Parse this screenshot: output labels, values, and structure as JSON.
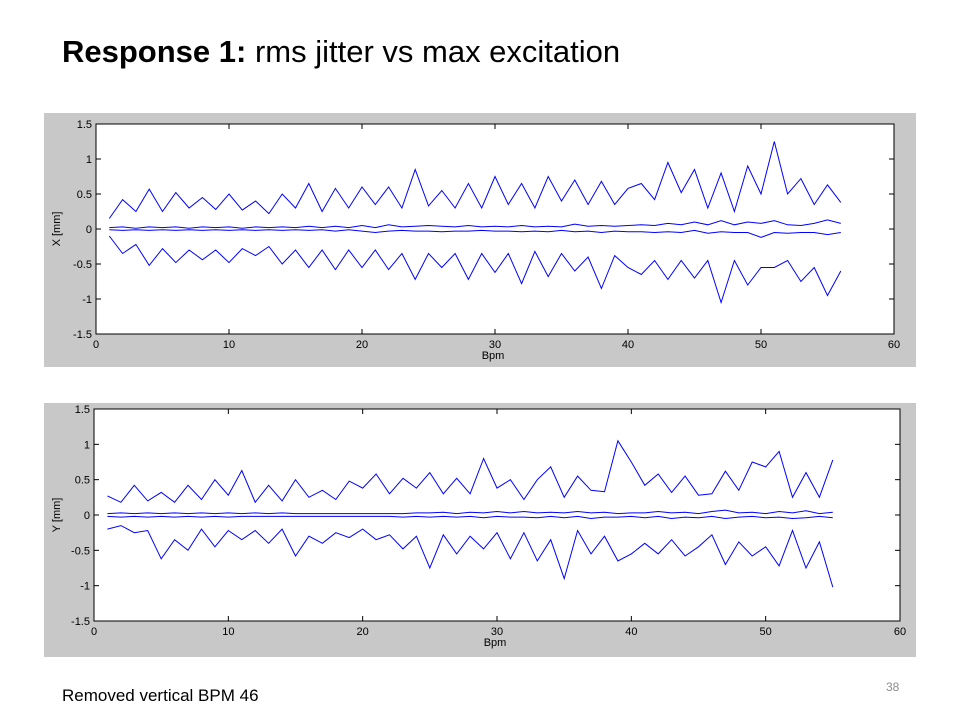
{
  "slide": {
    "title_bold": "Response 1:",
    "title_rest": " rms jitter vs max excitation",
    "note": "Removed vertical BPM 46",
    "page_number": "38"
  },
  "chart_data": [
    {
      "type": "line",
      "xlabel": "Bpm",
      "ylabel": "X [mm]",
      "xlim": [
        0,
        60
      ],
      "ylim": [
        -1.5,
        1.5
      ],
      "xticks": [
        "0",
        "10",
        "20",
        "30",
        "40",
        "50",
        "60"
      ],
      "yticks": [
        "1.5",
        "1",
        "0.5",
        "0",
        "-0.5",
        "-1",
        "-1.5"
      ],
      "grid": false,
      "line_color": "#0000ff",
      "x": [
        1,
        2,
        3,
        4,
        5,
        6,
        7,
        8,
        9,
        10,
        11,
        12,
        13,
        14,
        15,
        16,
        17,
        18,
        19,
        20,
        21,
        22,
        23,
        24,
        25,
        26,
        27,
        28,
        29,
        30,
        31,
        32,
        33,
        34,
        35,
        36,
        37,
        38,
        39,
        40,
        41,
        42,
        43,
        44,
        45,
        46,
        47,
        48,
        49,
        50,
        51,
        52,
        53,
        54,
        55,
        56
      ],
      "series": [
        {
          "values": [
            0.15,
            0.42,
            0.25,
            0.57,
            0.25,
            0.52,
            0.3,
            0.45,
            0.28,
            0.5,
            0.27,
            0.4,
            0.22,
            0.5,
            0.3,
            0.65,
            0.25,
            0.58,
            0.3,
            0.6,
            0.35,
            0.6,
            0.3,
            0.85,
            0.33,
            0.55,
            0.3,
            0.65,
            0.3,
            0.75,
            0.35,
            0.65,
            0.3,
            0.75,
            0.4,
            0.7,
            0.35,
            0.68,
            0.35,
            0.58,
            0.65,
            0.42,
            0.95,
            0.52,
            0.85,
            0.3,
            0.8,
            0.25,
            0.9,
            0.5,
            1.25,
            0.5,
            0.72,
            0.35,
            0.63,
            0.38
          ]
        },
        {
          "values": [
            -0.1,
            -0.35,
            -0.22,
            -0.52,
            -0.28,
            -0.48,
            -0.3,
            -0.44,
            -0.3,
            -0.48,
            -0.28,
            -0.38,
            -0.25,
            -0.5,
            -0.3,
            -0.55,
            -0.3,
            -0.58,
            -0.3,
            -0.55,
            -0.3,
            -0.58,
            -0.35,
            -0.72,
            -0.35,
            -0.55,
            -0.35,
            -0.72,
            -0.35,
            -0.62,
            -0.35,
            -0.78,
            -0.32,
            -0.68,
            -0.35,
            -0.6,
            -0.4,
            -0.85,
            -0.38,
            -0.55,
            -0.65,
            -0.45,
            -0.72,
            -0.45,
            -0.7,
            -0.45,
            -1.05,
            -0.45,
            -0.8,
            -0.55,
            -0.55,
            -0.45,
            -0.75,
            -0.55,
            -0.95,
            -0.6
          ]
        },
        {
          "values": [
            0.02,
            0.03,
            0.01,
            0.03,
            0.02,
            0.03,
            0.01,
            0.03,
            0.02,
            0.03,
            0.01,
            0.03,
            0.02,
            0.03,
            0.02,
            0.04,
            0.02,
            0.04,
            0.02,
            0.05,
            0.02,
            0.06,
            0.03,
            0.04,
            0.05,
            0.04,
            0.03,
            0.05,
            0.03,
            0.04,
            0.03,
            0.05,
            0.03,
            0.04,
            0.03,
            0.07,
            0.04,
            0.05,
            0.04,
            0.05,
            0.06,
            0.05,
            0.08,
            0.06,
            0.1,
            0.06,
            0.12,
            0.06,
            0.1,
            0.08,
            0.12,
            0.06,
            0.05,
            0.08,
            0.13,
            0.08
          ]
        },
        {
          "values": [
            -0.01,
            -0.02,
            -0.01,
            -0.02,
            -0.01,
            -0.02,
            -0.01,
            -0.02,
            -0.01,
            -0.02,
            -0.01,
            -0.02,
            -0.01,
            -0.02,
            -0.01,
            -0.02,
            -0.01,
            -0.03,
            -0.01,
            -0.03,
            -0.05,
            -0.03,
            -0.02,
            -0.03,
            -0.03,
            -0.04,
            -0.03,
            -0.03,
            -0.02,
            -0.03,
            -0.03,
            -0.04,
            -0.03,
            -0.04,
            -0.02,
            -0.04,
            -0.03,
            -0.05,
            -0.03,
            -0.04,
            -0.04,
            -0.05,
            -0.04,
            -0.05,
            -0.02,
            -0.06,
            -0.04,
            -0.05,
            -0.05,
            -0.12,
            -0.05,
            -0.06,
            -0.05,
            -0.05,
            -0.08,
            -0.05
          ]
        }
      ]
    },
    {
      "type": "line",
      "xlabel": "Bpm",
      "ylabel": "Y [mm]",
      "xlim": [
        0,
        60
      ],
      "ylim": [
        -1.5,
        1.5
      ],
      "xticks": [
        "0",
        "10",
        "20",
        "30",
        "40",
        "50",
        "60"
      ],
      "yticks": [
        "1.5",
        "1",
        "0.5",
        "0",
        "-0.5",
        "-1",
        "-1.5"
      ],
      "grid": false,
      "line_color": "#0000ff",
      "x": [
        1,
        2,
        3,
        4,
        5,
        6,
        7,
        8,
        9,
        10,
        11,
        12,
        13,
        14,
        15,
        16,
        17,
        18,
        19,
        20,
        21,
        22,
        23,
        24,
        25,
        26,
        27,
        28,
        29,
        30,
        31,
        32,
        33,
        34,
        35,
        36,
        37,
        38,
        39,
        40,
        41,
        42,
        43,
        44,
        45,
        46,
        47,
        48,
        49,
        50,
        51,
        52,
        53,
        54,
        55
      ],
      "series": [
        {
          "values": [
            0.27,
            0.18,
            0.42,
            0.2,
            0.32,
            0.18,
            0.42,
            0.22,
            0.5,
            0.28,
            0.63,
            0.18,
            0.42,
            0.2,
            0.5,
            0.25,
            0.35,
            0.22,
            0.48,
            0.38,
            0.58,
            0.3,
            0.52,
            0.38,
            0.6,
            0.3,
            0.52,
            0.3,
            0.8,
            0.38,
            0.5,
            0.22,
            0.5,
            0.68,
            0.25,
            0.55,
            0.35,
            0.33,
            1.05,
            0.75,
            0.42,
            0.58,
            0.32,
            0.55,
            0.28,
            0.3,
            0.62,
            0.35,
            0.75,
            0.68,
            0.9,
            0.25,
            0.6,
            0.25,
            0.78
          ]
        },
        {
          "values": [
            -0.2,
            -0.15,
            -0.25,
            -0.22,
            -0.62,
            -0.35,
            -0.5,
            -0.2,
            -0.45,
            -0.22,
            -0.35,
            -0.22,
            -0.4,
            -0.2,
            -0.58,
            -0.3,
            -0.4,
            -0.25,
            -0.32,
            -0.2,
            -0.35,
            -0.28,
            -0.48,
            -0.3,
            -0.75,
            -0.28,
            -0.55,
            -0.3,
            -0.48,
            -0.25,
            -0.62,
            -0.25,
            -0.65,
            -0.35,
            -0.9,
            -0.22,
            -0.55,
            -0.3,
            -0.65,
            -0.55,
            -0.4,
            -0.55,
            -0.35,
            -0.58,
            -0.45,
            -0.28,
            -0.7,
            -0.38,
            -0.58,
            -0.45,
            -0.72,
            -0.22,
            -0.75,
            -0.38,
            -1.02
          ]
        },
        {
          "values": [
            0.02,
            0.03,
            0.02,
            0.03,
            0.02,
            0.03,
            0.02,
            0.03,
            0.02,
            0.03,
            0.02,
            0.03,
            0.02,
            0.03,
            0.02,
            0.02,
            0.02,
            0.02,
            0.02,
            0.02,
            0.02,
            0.02,
            0.02,
            0.03,
            0.03,
            0.04,
            0.02,
            0.04,
            0.03,
            0.05,
            0.03,
            0.05,
            0.03,
            0.04,
            0.03,
            0.05,
            0.03,
            0.04,
            0.02,
            0.03,
            0.03,
            0.05,
            0.03,
            0.04,
            0.02,
            0.05,
            0.07,
            0.03,
            0.04,
            0.02,
            0.05,
            0.03,
            0.06,
            0.02,
            0.04
          ]
        },
        {
          "values": [
            -0.02,
            -0.03,
            -0.02,
            -0.03,
            -0.02,
            -0.03,
            -0.02,
            -0.03,
            -0.02,
            -0.03,
            -0.02,
            -0.02,
            -0.02,
            -0.02,
            -0.02,
            -0.02,
            -0.02,
            -0.02,
            -0.02,
            -0.02,
            -0.02,
            -0.02,
            -0.03,
            -0.02,
            -0.03,
            -0.02,
            -0.03,
            -0.02,
            -0.04,
            -0.02,
            -0.03,
            -0.03,
            -0.04,
            -0.02,
            -0.04,
            -0.02,
            -0.05,
            -0.03,
            -0.03,
            -0.02,
            -0.04,
            -0.02,
            -0.05,
            -0.03,
            -0.04,
            -0.02,
            -0.05,
            -0.03,
            -0.02,
            -0.04,
            -0.03,
            -0.05,
            -0.04,
            -0.02,
            -0.04
          ]
        }
      ]
    }
  ]
}
